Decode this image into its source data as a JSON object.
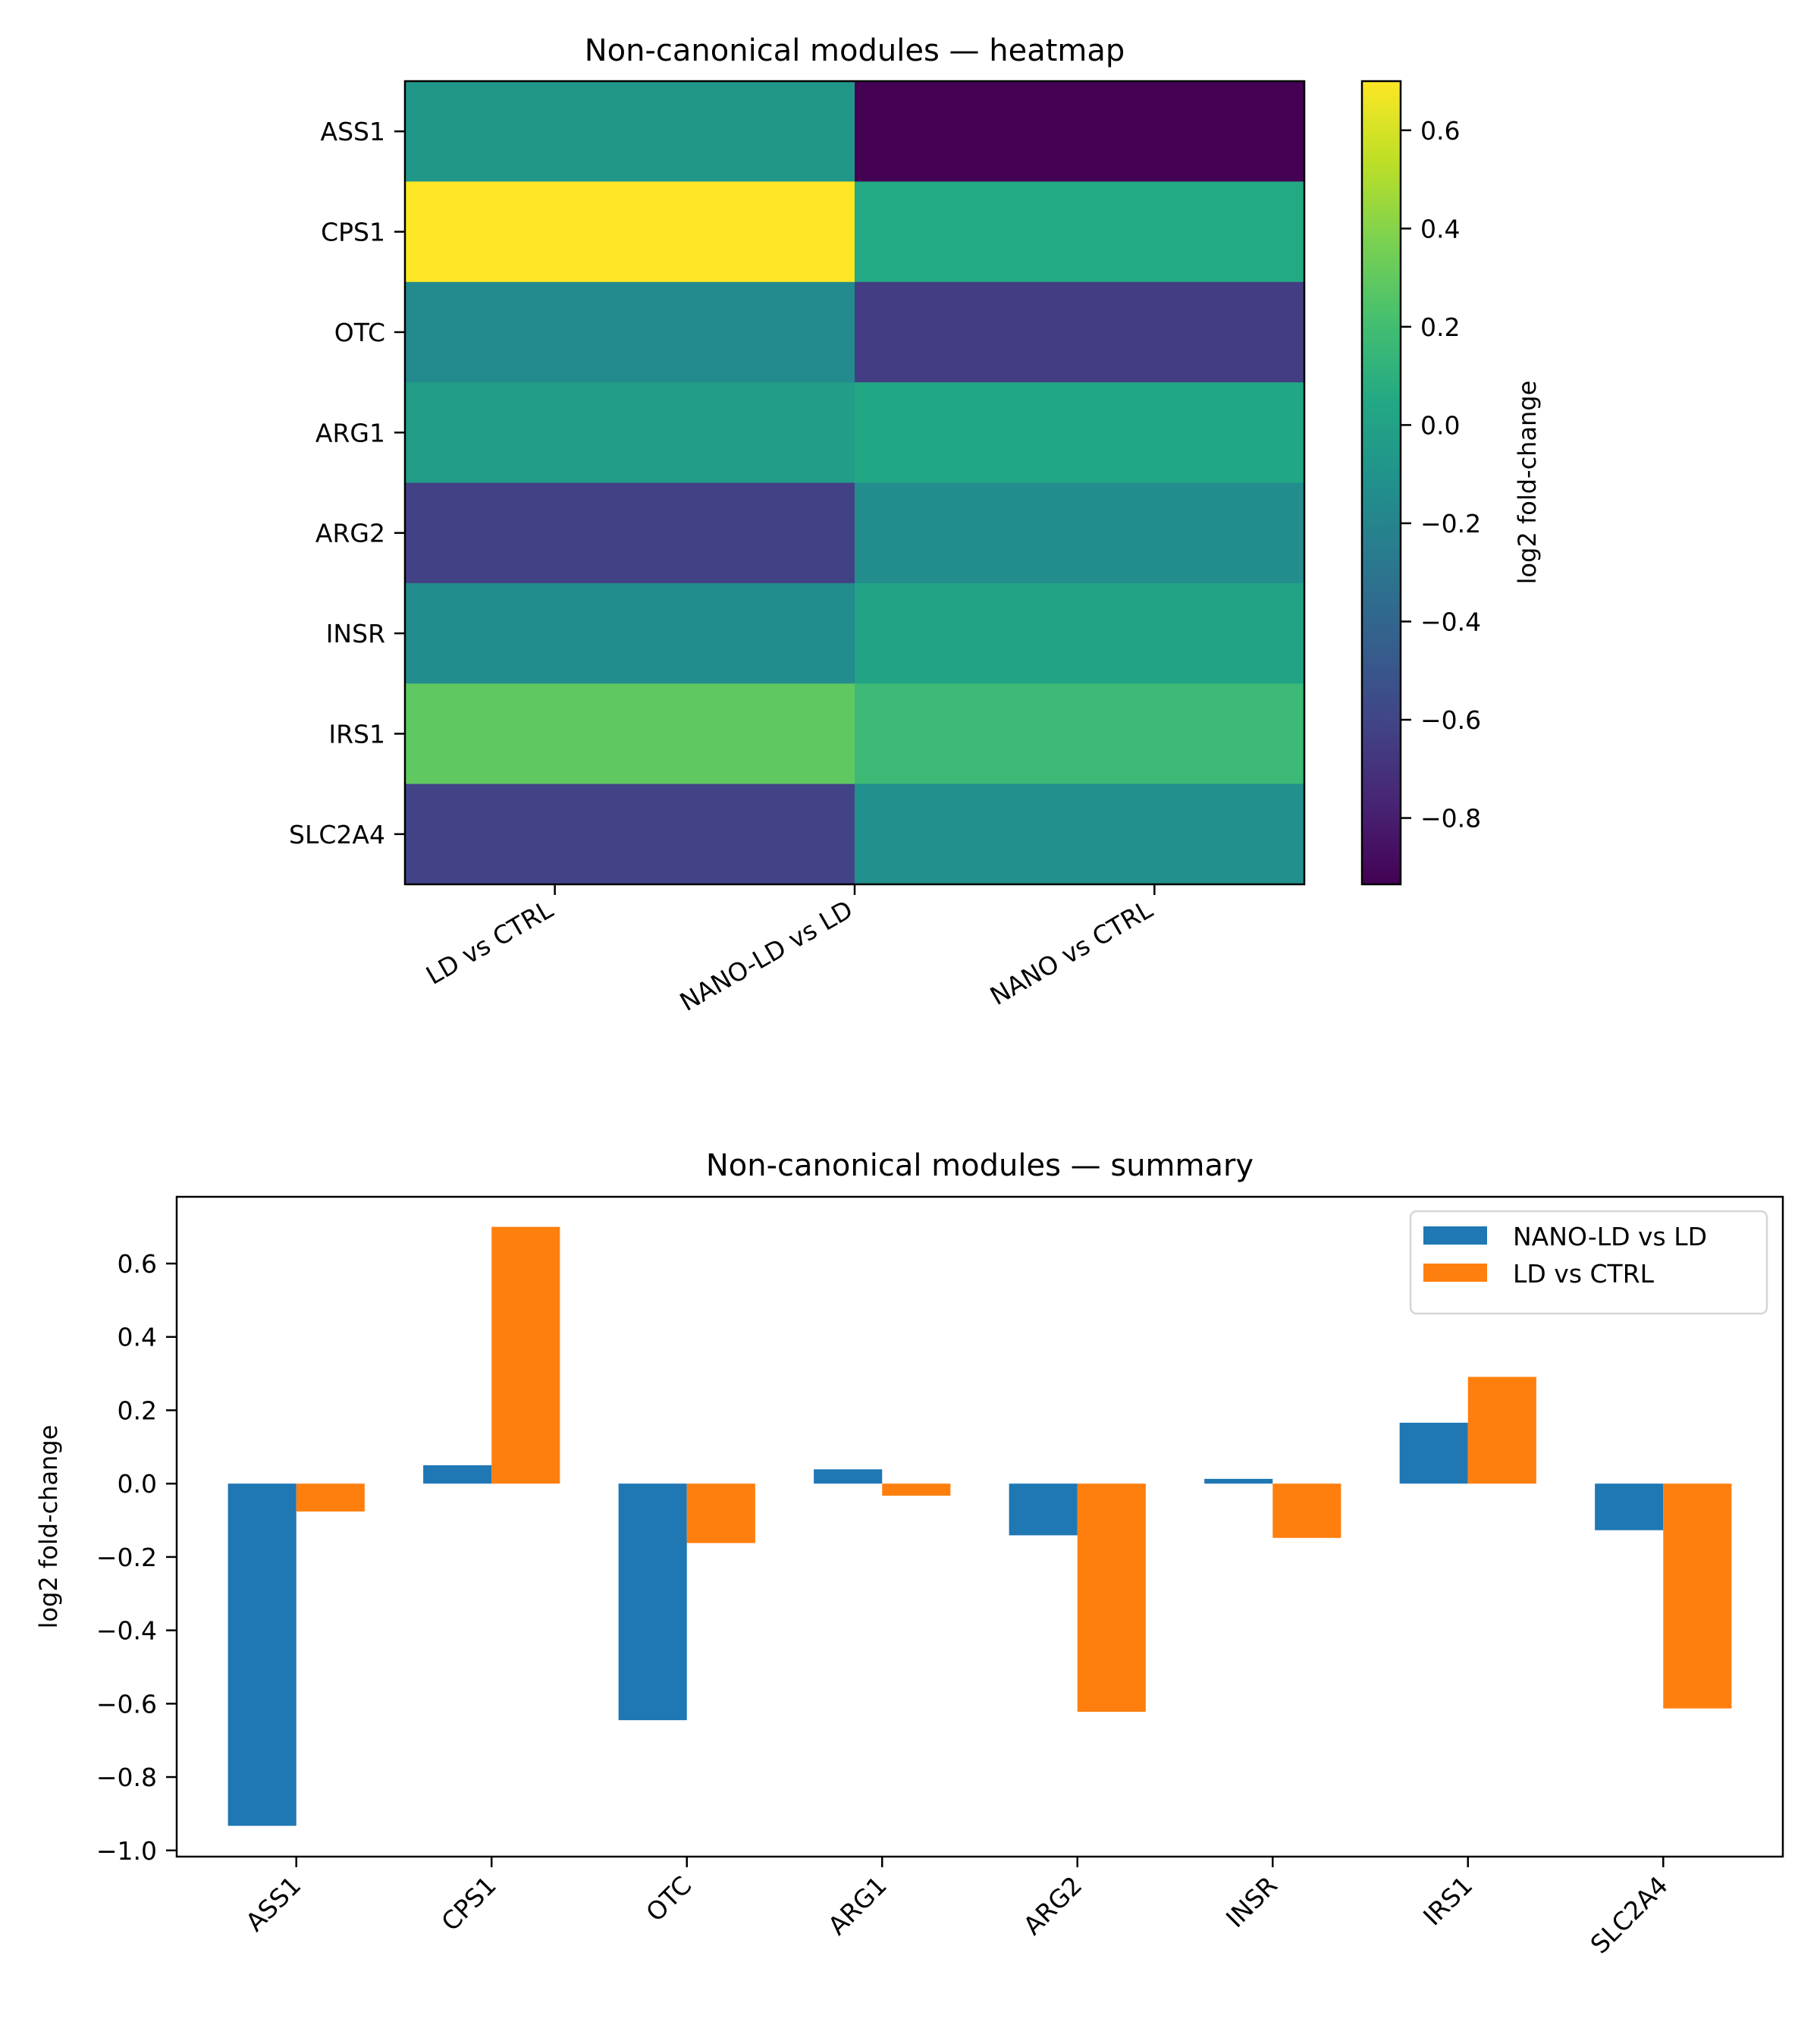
{
  "chart_data": [
    {
      "type": "heatmap",
      "title": "Non-canonical modules — heatmap",
      "row_labels": [
        "ASS1",
        "CPS1",
        "OTC",
        "ARG1",
        "ARG2",
        "INSR",
        "IRS1",
        "SLC2A4"
      ],
      "column_tick_labels": [
        "LD vs CTRL",
        "NANO-LD vs LD",
        "NANO vs CTRL"
      ],
      "columns_drawn": [
        "LD vs CTRL",
        "NANO-LD vs LD"
      ],
      "values": [
        [
          -0.076,
          -0.933
        ],
        [
          0.7,
          0.05
        ],
        [
          -0.162,
          -0.645
        ],
        [
          -0.033,
          0.039
        ],
        [
          -0.622,
          -0.141
        ],
        [
          -0.148,
          0.013
        ],
        [
          0.291,
          0.166
        ],
        [
          -0.613,
          -0.127
        ]
      ],
      "colormap": "viridis",
      "colorbar": {
        "label": "log2 fold-change",
        "range": [
          -0.935,
          0.7
        ],
        "ticks": [
          0.6,
          0.4,
          0.2,
          0.0,
          -0.2,
          -0.4,
          -0.6,
          -0.8
        ],
        "tick_labels": [
          "0.6",
          "0.4",
          "0.2",
          "0.0",
          "−0.2",
          "−0.4",
          "−0.6",
          "−0.8"
        ]
      }
    },
    {
      "type": "bar",
      "title": "Non-canonical modules — summary",
      "categories": [
        "ASS1",
        "CPS1",
        "OTC",
        "ARG1",
        "ARG2",
        "INSR",
        "IRS1",
        "SLC2A4"
      ],
      "series": [
        {
          "name": "NANO-LD vs LD",
          "color": "#1f77b4",
          "values": [
            -0.933,
            0.05,
            -0.645,
            0.039,
            -0.141,
            0.013,
            0.166,
            -0.127
          ]
        },
        {
          "name": "LD vs CTRL",
          "color": "#ff7f0e",
          "values": [
            -0.076,
            0.7,
            -0.162,
            -0.033,
            -0.622,
            -0.148,
            0.291,
            -0.613
          ]
        }
      ],
      "xlabel": "",
      "ylabel": "log2 fold-change",
      "ylim": [
        -1.017,
        0.782
      ],
      "yticks": [
        0.6,
        0.4,
        0.2,
        0.0,
        -0.2,
        -0.4,
        -0.6,
        -0.8,
        -1.0
      ],
      "ytick_labels": [
        "0.6",
        "0.4",
        "0.2",
        "0.0",
        "−0.2",
        "−0.4",
        "−0.6",
        "−0.8",
        "−1.0"
      ],
      "grid": false,
      "legend_position": "top-right"
    }
  ]
}
